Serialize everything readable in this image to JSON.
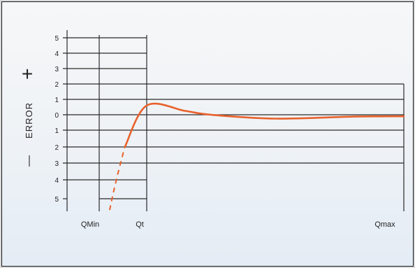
{
  "chart_data": {
    "type": "line",
    "ylabel": "ERROR",
    "ylabel_plus": "+",
    "ylabel_minus": "—",
    "upper_ticks": [
      "5",
      "4",
      "3",
      "2",
      "1",
      "0"
    ],
    "lower_ticks": [
      "1",
      "2",
      "3",
      "4",
      "5"
    ],
    "ylim": [
      -5,
      5
    ],
    "x_markers": [
      "QMin",
      "Qt",
      "Qmax"
    ],
    "series": [
      {
        "dashed_points": [
          [
            0.22,
            -5.6
          ],
          [
            0.54,
            -2.0
          ]
        ],
        "solid_points": [
          [
            0.54,
            -2.0
          ],
          [
            1.0,
            0.6
          ],
          [
            1.6,
            0.25
          ],
          [
            2.0,
            0.0
          ],
          [
            3.0,
            -0.25
          ],
          [
            4.2,
            -0.12
          ],
          [
            5.0,
            -0.1
          ]
        ],
        "color": "#e8622c"
      }
    ],
    "grid": true
  }
}
